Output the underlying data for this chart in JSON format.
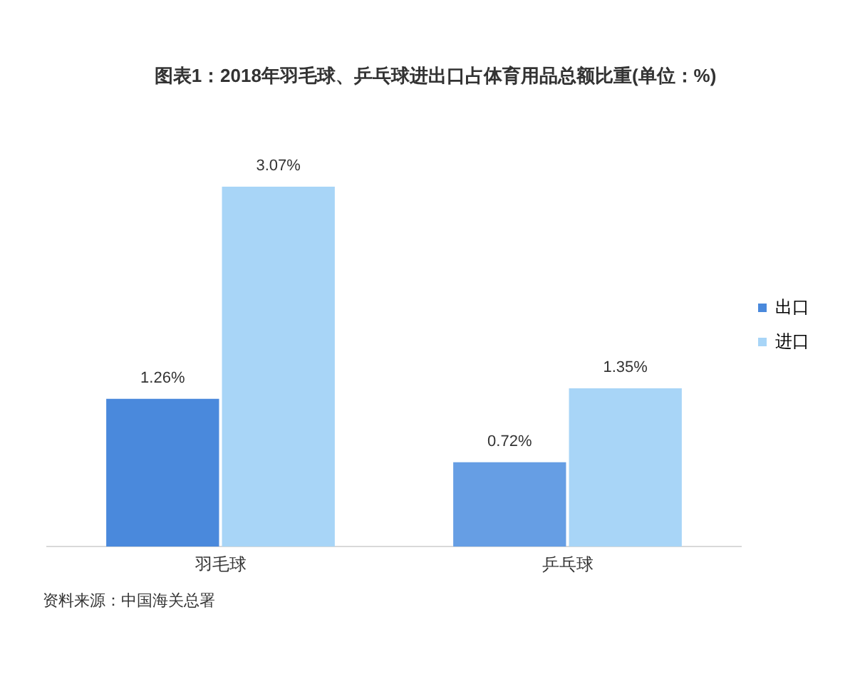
{
  "chart_data": {
    "type": "bar",
    "title": "图表1：2018年羽毛球、乒乓球进出口占体育用品总额比重(单位：%)",
    "categories": [
      "羽毛球",
      "乒乓球"
    ],
    "series": [
      {
        "name": "出口",
        "color": "#4a89dc",
        "colors": [
          "#4a89dc",
          "#669ee4"
        ],
        "values": [
          1.26,
          0.72
        ],
        "value_labels": [
          "1.26%",
          "0.72%"
        ]
      },
      {
        "name": "进口",
        "color": "#a8d5f7",
        "values": [
          3.07,
          1.35
        ],
        "value_labels": [
          "3.07%",
          "1.35%"
        ]
      }
    ],
    "legend": "right",
    "annotations": [
      "资料来源：中国海关总署"
    ]
  }
}
